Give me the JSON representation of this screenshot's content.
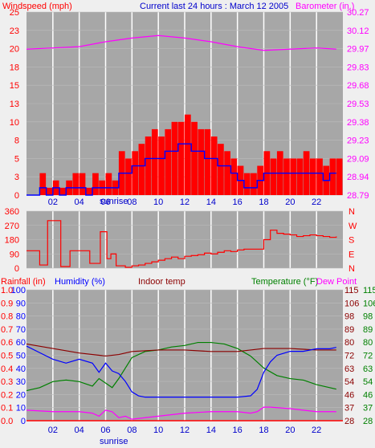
{
  "colors": {
    "background": "#efefef",
    "panel": "#a7a7a7",
    "grid": "#ffffff",
    "wind_bars": "#ff0000",
    "wind_avg": "#0000ff",
    "barometer": "#ff00ff",
    "wind_dir": "#ff0000",
    "rain": "#ff0000",
    "humidity": "#0000ff",
    "indoor_temp": "#8b0000",
    "temperature": "#008000",
    "dew_point": "#ff00ff",
    "title": "#0000cc"
  },
  "chart_data": [
    {
      "id": "wind-baro",
      "type": "bar",
      "title": "Current last 24 hours : March 12 2005",
      "left_axis_label": "Windspeed (mph)",
      "right_axis_label": "Barometer (in.)",
      "x_tick_labels": [
        "02",
        "04",
        "06",
        "08",
        "10",
        "12",
        "14",
        "16",
        "18",
        "20",
        "22"
      ],
      "x_ticks": [
        2,
        4,
        6,
        8,
        10,
        12,
        14,
        16,
        18,
        20,
        22
      ],
      "x_range": [
        0,
        24
      ],
      "sunrise_label": "sunrise",
      "sunrise_hour": 6.5,
      "left_ticks": [
        "0",
        "3",
        "5",
        "8",
        "10",
        "13",
        "15",
        "18",
        "20",
        "23",
        "25"
      ],
      "left_range": [
        0,
        25
      ],
      "right_ticks": [
        "28.79",
        "28.94",
        "29.09",
        "29.23",
        "29.38",
        "29.53",
        "29.68",
        "29.83",
        "29.97",
        "30.12",
        "30.27"
      ],
      "right_range": [
        28.79,
        30.27
      ],
      "grid": true,
      "wind_gust": [
        [
          0.0,
          0
        ],
        [
          0.5,
          0
        ],
        [
          1.0,
          3
        ],
        [
          1.5,
          1
        ],
        [
          2.0,
          2
        ],
        [
          2.5,
          1
        ],
        [
          3.0,
          2
        ],
        [
          3.5,
          3
        ],
        [
          4.0,
          3
        ],
        [
          4.5,
          1
        ],
        [
          5.0,
          3
        ],
        [
          5.5,
          2
        ],
        [
          6.0,
          3
        ],
        [
          6.5,
          2
        ],
        [
          7.0,
          6
        ],
        [
          7.5,
          5
        ],
        [
          8.0,
          6
        ],
        [
          8.5,
          7
        ],
        [
          9.0,
          8
        ],
        [
          9.5,
          9
        ],
        [
          10.0,
          8
        ],
        [
          10.5,
          9
        ],
        [
          11.0,
          10
        ],
        [
          11.5,
          10
        ],
        [
          12.0,
          11
        ],
        [
          12.5,
          10
        ],
        [
          13.0,
          9
        ],
        [
          13.5,
          9
        ],
        [
          14.0,
          8
        ],
        [
          14.5,
          7
        ],
        [
          15.0,
          6
        ],
        [
          15.5,
          5
        ],
        [
          16.0,
          4
        ],
        [
          16.5,
          3
        ],
        [
          17.0,
          3
        ],
        [
          17.5,
          4
        ],
        [
          18.0,
          6
        ],
        [
          18.5,
          5
        ],
        [
          19.0,
          6
        ],
        [
          19.5,
          5
        ],
        [
          20.0,
          5
        ],
        [
          20.5,
          5
        ],
        [
          21.0,
          6
        ],
        [
          21.5,
          5
        ],
        [
          22.0,
          5
        ],
        [
          22.5,
          4
        ],
        [
          23.0,
          5
        ],
        [
          23.5,
          5
        ]
      ],
      "wind_avg": [
        [
          0.0,
          0
        ],
        [
          0.5,
          0
        ],
        [
          1.0,
          1
        ],
        [
          1.5,
          0
        ],
        [
          2.0,
          1
        ],
        [
          2.5,
          0
        ],
        [
          3.0,
          1
        ],
        [
          3.5,
          1
        ],
        [
          4.0,
          1
        ],
        [
          4.5,
          0
        ],
        [
          5.0,
          1
        ],
        [
          5.5,
          1
        ],
        [
          6.0,
          1
        ],
        [
          6.5,
          1
        ],
        [
          7.0,
          3
        ],
        [
          7.5,
          3
        ],
        [
          8.0,
          4
        ],
        [
          8.5,
          4
        ],
        [
          9.0,
          5
        ],
        [
          9.5,
          5
        ],
        [
          10.0,
          5
        ],
        [
          10.5,
          6
        ],
        [
          11.0,
          6
        ],
        [
          11.5,
          7
        ],
        [
          12.0,
          7
        ],
        [
          12.5,
          6
        ],
        [
          13.0,
          6
        ],
        [
          13.5,
          5
        ],
        [
          14.0,
          5
        ],
        [
          14.5,
          4
        ],
        [
          15.0,
          4
        ],
        [
          15.5,
          3
        ],
        [
          16.0,
          2
        ],
        [
          16.5,
          1
        ],
        [
          17.0,
          1
        ],
        [
          17.5,
          2
        ],
        [
          18.0,
          3
        ],
        [
          18.5,
          3
        ],
        [
          19.0,
          3
        ],
        [
          19.5,
          3
        ],
        [
          20.0,
          3
        ],
        [
          20.5,
          3
        ],
        [
          21.0,
          3
        ],
        [
          21.5,
          3
        ],
        [
          22.0,
          3
        ],
        [
          22.5,
          2
        ],
        [
          23.0,
          3
        ],
        [
          23.5,
          3
        ]
      ],
      "barometer": [
        [
          0,
          29.97
        ],
        [
          2,
          29.98
        ],
        [
          4,
          29.99
        ],
        [
          6,
          30.03
        ],
        [
          8,
          30.06
        ],
        [
          10,
          30.08
        ],
        [
          12,
          30.06
        ],
        [
          14,
          30.03
        ],
        [
          16,
          29.99
        ],
        [
          18,
          29.96
        ],
        [
          20,
          29.97
        ],
        [
          22,
          29.98
        ],
        [
          23.5,
          29.97
        ]
      ]
    },
    {
      "id": "wind-dir",
      "type": "line",
      "left_ticks": [
        "0",
        "90",
        "180",
        "270",
        "360"
      ],
      "left_range": [
        0,
        360
      ],
      "right_ticks": [
        "N",
        "W",
        "S",
        "E",
        "N"
      ],
      "x_ticks": [
        2,
        4,
        6,
        8,
        10,
        12,
        14,
        16,
        18,
        20,
        22
      ],
      "x_range": [
        0,
        24
      ],
      "grid": true,
      "direction": [
        [
          0.0,
          110
        ],
        [
          0.7,
          110
        ],
        [
          1.0,
          20
        ],
        [
          1.4,
          20
        ],
        [
          1.6,
          300
        ],
        [
          2.4,
          300
        ],
        [
          2.6,
          10
        ],
        [
          3.0,
          10
        ],
        [
          3.3,
          110
        ],
        [
          4.5,
          110
        ],
        [
          4.8,
          30
        ],
        [
          5.4,
          30
        ],
        [
          5.6,
          230
        ],
        [
          5.9,
          230
        ],
        [
          6.1,
          60
        ],
        [
          6.4,
          90
        ],
        [
          6.8,
          15
        ],
        [
          7.5,
          5
        ],
        [
          8.0,
          15
        ],
        [
          8.5,
          20
        ],
        [
          9.0,
          30
        ],
        [
          9.5,
          40
        ],
        [
          10.0,
          50
        ],
        [
          10.5,
          60
        ],
        [
          11.0,
          70
        ],
        [
          11.5,
          60
        ],
        [
          12.0,
          75
        ],
        [
          12.5,
          80
        ],
        [
          13.0,
          85
        ],
        [
          13.5,
          95
        ],
        [
          14.0,
          90
        ],
        [
          14.5,
          100
        ],
        [
          15.0,
          110
        ],
        [
          15.5,
          105
        ],
        [
          16.0,
          115
        ],
        [
          16.5,
          120
        ],
        [
          17.0,
          120
        ],
        [
          17.5,
          120
        ],
        [
          18.0,
          180
        ],
        [
          18.5,
          240
        ],
        [
          19.0,
          220
        ],
        [
          19.5,
          215
        ],
        [
          20.0,
          210
        ],
        [
          20.5,
          200
        ],
        [
          21.0,
          205
        ],
        [
          21.5,
          210
        ],
        [
          22.0,
          205
        ],
        [
          22.5,
          200
        ],
        [
          23.0,
          195
        ],
        [
          23.5,
          200
        ]
      ]
    },
    {
      "id": "temp-hum",
      "type": "line",
      "labels": {
        "rainfall": "Rainfall (in)",
        "humidity": "Humidity (%)",
        "indoor": "Indoor temp",
        "temperature": "Temperature (°F)",
        "dew": "Dew Point"
      },
      "x_tick_labels": [
        "02",
        "04",
        "06",
        "08",
        "10",
        "12",
        "14",
        "16",
        "18",
        "20",
        "22"
      ],
      "x_ticks": [
        2,
        4,
        6,
        8,
        10,
        12,
        14,
        16,
        18,
        20,
        22
      ],
      "x_range": [
        0,
        24
      ],
      "sunrise_label": "sunrise",
      "sunrise_hour": 6.5,
      "grid": true,
      "rain_ticks": [
        "0.0",
        "0.1",
        "0.2",
        "0.3",
        "0.4",
        "0.5",
        "0.6",
        "0.7",
        "0.8",
        "0.9",
        "1.0"
      ],
      "hum_ticks": [
        "0",
        "10",
        "20",
        "30",
        "40",
        "50",
        "60",
        "70",
        "80",
        "90",
        "100"
      ],
      "temp_ticks": [
        "28",
        "37",
        "46",
        "54",
        "63",
        "72",
        "80",
        "89",
        "98",
        "106",
        "115"
      ],
      "dew_ticks": [
        "28",
        "37",
        "46",
        "54",
        "63",
        "72",
        "80",
        "89",
        "98",
        "106",
        "115"
      ],
      "temp_range": [
        28,
        115
      ],
      "humidity": [
        [
          0,
          57
        ],
        [
          1,
          52
        ],
        [
          2,
          47
        ],
        [
          3,
          44
        ],
        [
          4,
          47
        ],
        [
          5,
          44
        ],
        [
          5.5,
          37
        ],
        [
          6,
          44
        ],
        [
          6.5,
          38
        ],
        [
          7,
          36
        ],
        [
          7.5,
          30
        ],
        [
          8,
          22
        ],
        [
          8.5,
          19
        ],
        [
          9,
          18
        ],
        [
          10,
          18
        ],
        [
          12,
          18
        ],
        [
          14,
          18
        ],
        [
          16,
          18
        ],
        [
          17,
          19
        ],
        [
          17.5,
          24
        ],
        [
          18,
          37
        ],
        [
          18.5,
          45
        ],
        [
          19,
          50
        ],
        [
          20,
          53
        ],
        [
          21,
          53
        ],
        [
          22,
          55
        ],
        [
          23,
          55
        ],
        [
          23.5,
          56
        ]
      ],
      "temperature": [
        [
          0,
          48
        ],
        [
          1,
          50
        ],
        [
          2,
          54
        ],
        [
          3,
          55
        ],
        [
          4,
          54
        ],
        [
          5,
          51
        ],
        [
          5.5,
          56
        ],
        [
          6,
          53
        ],
        [
          6.5,
          50
        ],
        [
          7,
          56
        ],
        [
          7.5,
          63
        ],
        [
          8,
          70
        ],
        [
          9,
          74
        ],
        [
          10,
          75
        ],
        [
          11,
          77
        ],
        [
          12,
          78
        ],
        [
          13,
          80
        ],
        [
          14,
          80
        ],
        [
          15,
          79
        ],
        [
          16,
          76
        ],
        [
          17,
          71
        ],
        [
          18,
          63
        ],
        [
          19,
          58
        ],
        [
          20,
          56
        ],
        [
          21,
          55
        ],
        [
          22,
          52
        ],
        [
          23,
          50
        ],
        [
          23.5,
          49
        ]
      ],
      "indoor": [
        [
          0,
          79
        ],
        [
          2,
          76
        ],
        [
          4,
          73
        ],
        [
          6,
          71
        ],
        [
          7,
          72
        ],
        [
          8,
          74
        ],
        [
          10,
          75
        ],
        [
          12,
          75
        ],
        [
          14,
          74
        ],
        [
          16,
          74
        ],
        [
          18,
          76
        ],
        [
          20,
          76
        ],
        [
          22,
          75
        ],
        [
          23.5,
          75
        ]
      ],
      "dew": [
        [
          0,
          35
        ],
        [
          2,
          34
        ],
        [
          4,
          34
        ],
        [
          5,
          33
        ],
        [
          5.5,
          31
        ],
        [
          6,
          35
        ],
        [
          6.5,
          34
        ],
        [
          7,
          30
        ],
        [
          7.5,
          31
        ],
        [
          8,
          29
        ],
        [
          9,
          30
        ],
        [
          10,
          31
        ],
        [
          12,
          33
        ],
        [
          14,
          34
        ],
        [
          16,
          34
        ],
        [
          17,
          33
        ],
        [
          17.5,
          34
        ],
        [
          18,
          37
        ],
        [
          18.5,
          37
        ],
        [
          20,
          36
        ],
        [
          22,
          34
        ],
        [
          23.5,
          34
        ]
      ],
      "rain": [
        [
          0,
          0
        ],
        [
          24,
          0
        ]
      ]
    }
  ]
}
